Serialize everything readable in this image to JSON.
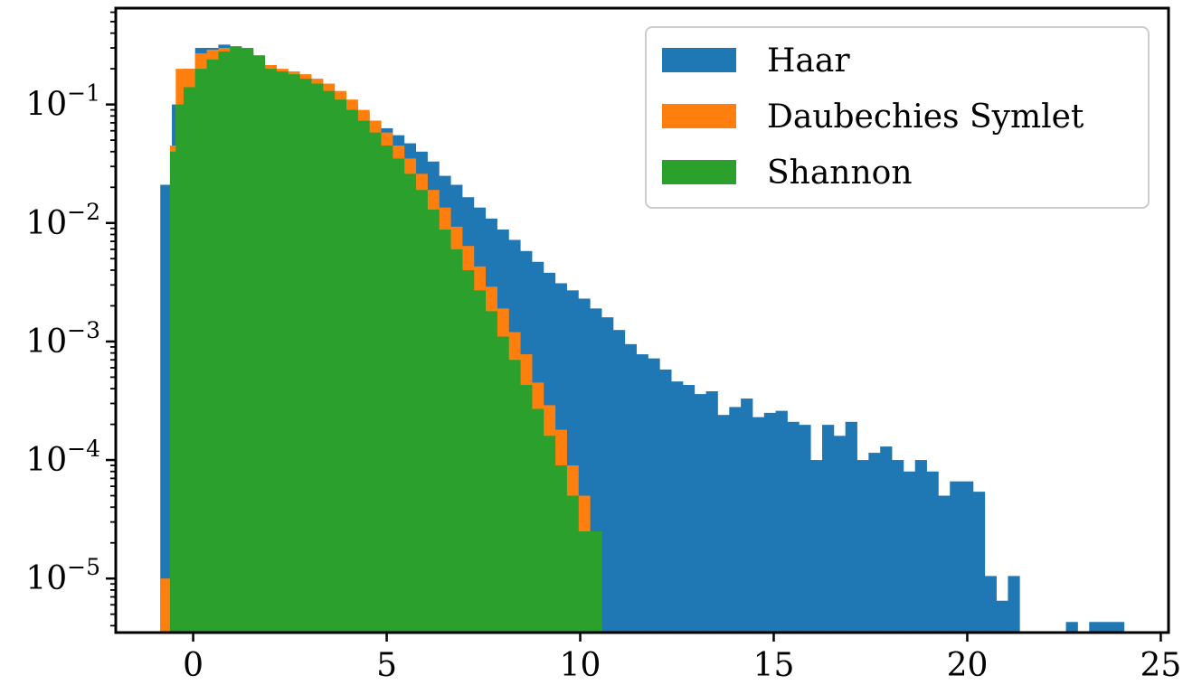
{
  "chart_data": {
    "type": "histogram",
    "title": "",
    "xlabel": "",
    "ylabel": "",
    "xlim": [
      -2,
      25.2
    ],
    "ylim": [
      3.5e-06,
      0.65
    ],
    "yscale": "log",
    "grid": false,
    "legend_position": "top-right",
    "x_ticks": [
      {
        "value": 0,
        "label": "0"
      },
      {
        "value": 5,
        "label": "5"
      },
      {
        "value": 10,
        "label": "10"
      },
      {
        "value": 15,
        "label": "15"
      },
      {
        "value": 20,
        "label": "20"
      },
      {
        "value": 25,
        "label": "25"
      }
    ],
    "y_ticks": [
      {
        "value": 1e-05,
        "base": "10",
        "exp": "−5"
      },
      {
        "value": 0.0001,
        "base": "10",
        "exp": "−4"
      },
      {
        "value": 0.001,
        "base": "10",
        "exp": "−3"
      },
      {
        "value": 0.01,
        "base": "10",
        "exp": "−2"
      },
      {
        "value": 0.1,
        "base": "10",
        "exp": "−1"
      }
    ],
    "series": [
      {
        "name": "Haar",
        "color": "#1f77b4",
        "bin_edges": [
          -0.85,
          -0.55,
          -0.25,
          0.05,
          0.35,
          0.65,
          0.95,
          1.25,
          1.55,
          1.85,
          2.15,
          2.45,
          2.75,
          3.05,
          3.35,
          3.65,
          3.95,
          4.25,
          4.55,
          4.85,
          5.15,
          5.45,
          5.75,
          6.05,
          6.35,
          6.65,
          6.95,
          7.25,
          7.55,
          7.85,
          8.15,
          8.45,
          8.75,
          9.05,
          9.35,
          9.65,
          9.95,
          10.25,
          10.55,
          10.85,
          11.15,
          11.45,
          11.75,
          12.05,
          12.35,
          12.65,
          12.95,
          13.25,
          13.55,
          13.85,
          14.15,
          14.45,
          14.75,
          15.05,
          15.35,
          15.65,
          15.95,
          16.25,
          16.55,
          16.85,
          17.15,
          17.45,
          17.75,
          18.05,
          18.35,
          18.65,
          18.95,
          19.25,
          19.55,
          19.85,
          20.15,
          20.45,
          20.75,
          21.05,
          21.35,
          21.65,
          21.95,
          22.25,
          22.55,
          22.85,
          23.15,
          23.45,
          23.75,
          24.05
        ],
        "values": [
          0.021,
          0.1,
          0.2,
          0.3,
          0.3,
          0.32,
          0.3,
          0.27,
          0.21,
          0.19,
          0.18,
          0.17,
          0.16,
          0.15,
          0.13,
          0.115,
          0.1,
          0.085,
          0.073,
          0.063,
          0.055,
          0.047,
          0.04,
          0.033,
          0.025,
          0.021,
          0.0165,
          0.0135,
          0.0109,
          0.0088,
          0.0072,
          0.0058,
          0.0047,
          0.0038,
          0.0031,
          0.0027,
          0.0023,
          0.0019,
          0.0016,
          0.00125,
          0.00095,
          0.00078,
          0.00072,
          0.00058,
          0.00046,
          0.00043,
          0.00036,
          0.00038,
          0.00024,
          0.00028,
          0.00033,
          0.00023,
          0.00025,
          0.00026,
          0.00021,
          0.000198,
          0.0001,
          0.000198,
          0.00016,
          0.00021,
          0.0001,
          0.000115,
          0.00013,
          0.0001,
          8e-05,
          0.0001,
          8e-05,
          5e-05,
          6.6e-05,
          6.6e-05,
          5.4e-05,
          1.05e-05,
          6.5e-06,
          1.05e-05,
          0,
          0,
          0,
          0,
          4.3e-06,
          0,
          4.3e-06,
          4.3e-06,
          4.3e-06
        ]
      },
      {
        "name": "Daubechies Symlet",
        "color": "#ff7f0e",
        "bin_edges": [
          -0.85,
          -0.6,
          -0.45,
          0.05,
          0.35,
          0.65,
          0.95,
          1.25,
          1.55,
          1.85,
          2.15,
          2.45,
          2.75,
          3.05,
          3.35,
          3.65,
          3.95,
          4.25,
          4.55,
          4.85,
          5.15,
          5.45,
          5.75,
          6.05,
          6.35,
          6.65,
          6.95,
          7.25,
          7.55,
          7.85,
          8.15,
          8.45,
          8.75,
          9.05,
          9.35,
          9.65,
          9.95,
          10.25,
          10.55
        ],
        "values": [
          1e-05,
          0.045,
          0.2,
          0.27,
          0.29,
          0.3,
          0.29,
          0.26,
          0.24,
          0.215,
          0.2,
          0.19,
          0.18,
          0.165,
          0.15,
          0.13,
          0.11,
          0.09,
          0.073,
          0.058,
          0.045,
          0.035,
          0.026,
          0.019,
          0.0135,
          0.0093,
          0.0064,
          0.0043,
          0.0029,
          0.0019,
          0.0012,
          0.00078,
          0.00045,
          0.00029,
          0.00018,
          9e-05,
          5e-05,
          2.5e-05
        ]
      },
      {
        "name": "Shannon",
        "color": "#2ca02c",
        "bin_edges": [
          -0.6,
          -0.45,
          -0.25,
          0.05,
          0.35,
          0.65,
          0.95,
          1.25,
          1.55,
          1.85,
          2.15,
          2.45,
          2.75,
          3.05,
          3.35,
          3.65,
          3.95,
          4.25,
          4.55,
          4.85,
          5.15,
          5.45,
          5.75,
          6.05,
          6.35,
          6.65,
          6.95,
          7.25,
          7.55,
          7.85,
          8.15,
          8.45,
          8.75,
          9.05,
          9.35,
          9.65,
          9.95,
          10.25,
          10.55
        ],
        "values": [
          0.04,
          0.1,
          0.14,
          0.2,
          0.24,
          0.28,
          0.31,
          0.3,
          0.26,
          0.2,
          0.19,
          0.18,
          0.165,
          0.15,
          0.13,
          0.11,
          0.09,
          0.073,
          0.058,
          0.045,
          0.035,
          0.026,
          0.019,
          0.013,
          0.0088,
          0.006,
          0.004,
          0.0027,
          0.0018,
          0.0011,
          0.0007,
          0.00043,
          0.00027,
          0.00016,
          9e-05,
          5e-05,
          2.5e-05,
          2.5e-05
        ]
      }
    ]
  }
}
